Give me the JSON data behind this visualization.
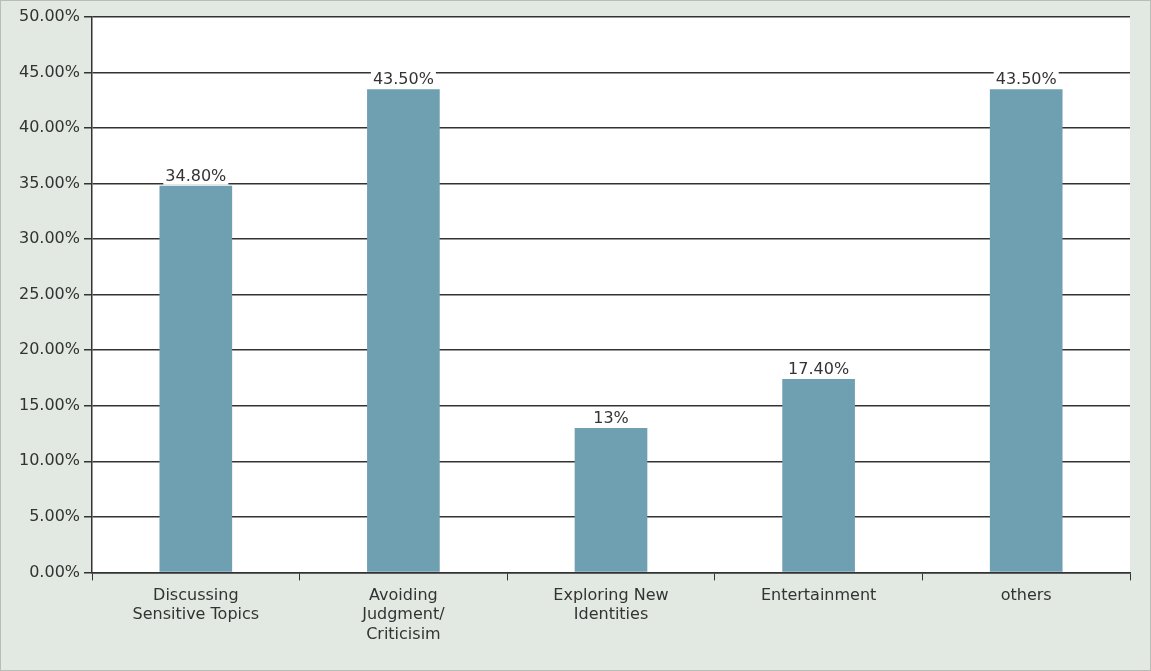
{
  "chart_data": {
    "type": "bar",
    "categories": [
      "Discussing Sensitive Topics",
      "Avoiding Judgment/ Criticisim",
      "Exploring New Identities",
      "Entertainment",
      "others"
    ],
    "values": [
      34.8,
      43.5,
      13,
      17.4,
      43.5
    ],
    "color": "#6fa0b1",
    "value_labels": [
      "34.80%",
      "43.50%",
      "13%",
      "17.40%",
      "43.50%"
    ],
    "ylim": [
      0,
      50
    ],
    "yticks": [
      {
        "value": 0,
        "label": "0.00%"
      },
      {
        "value": 5,
        "label": "5.00%"
      },
      {
        "value": 10,
        "label": "10.00%"
      },
      {
        "value": 15,
        "label": "15.00%"
      },
      {
        "value": 20,
        "label": "20.00%"
      },
      {
        "value": 25,
        "label": "25.00%"
      },
      {
        "value": 30,
        "label": "30.00%"
      },
      {
        "value": 35,
        "label": "35.00%"
      },
      {
        "value": 40,
        "label": "40.00%"
      },
      {
        "value": 45,
        "label": "45.00%"
      },
      {
        "value": 50,
        "label": "50.00%"
      }
    ],
    "grid": "y",
    "legend": false
  }
}
